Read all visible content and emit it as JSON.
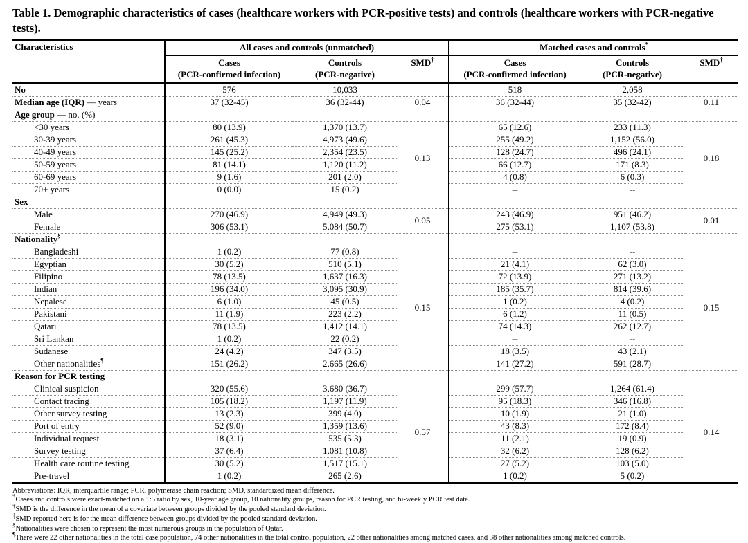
{
  "title": "Table 1. Demographic characteristics of cases (healthcare workers with PCR-positive tests) and controls (healthcare workers with PCR-negative tests).",
  "table": {
    "header": {
      "characteristics": "Characteristics",
      "group1": "All cases and controls (unmatched)",
      "group2": "Matched cases and controls",
      "group2_sup": "*",
      "cases_line1": "Cases",
      "cases_line2": "(PCR-confirmed infection)",
      "controls_line1": "Controls",
      "controls_line2": "(PCR-negative)",
      "smd": "SMD",
      "smd_sup": "†"
    },
    "rows": [
      {
        "label": "No",
        "bold": true,
        "cells": [
          "576",
          "10,033",
          "",
          "518",
          "2,058",
          ""
        ]
      },
      {
        "label": "Median age (IQR)",
        "rest": " — years",
        "bold": true,
        "cells": [
          "37 (32-45)",
          "36 (32-44)",
          "0.04",
          "36 (32-44)",
          "35 (32-42)",
          "0.11"
        ]
      },
      {
        "label": "Age group",
        "rest": " — no. (%)",
        "bold": true,
        "cells": [
          "",
          "",
          "",
          "",
          "",
          ""
        ]
      },
      {
        "label": "<30 years",
        "indent": true,
        "cells": [
          "80 (13.9)",
          "1,370 (13.7)",
          {
            "t": "0.13",
            "rs": 6
          },
          "65 (12.6)",
          "233 (11.3)",
          {
            "t": "0.18",
            "rs": 6
          }
        ]
      },
      {
        "label": "30-39 years",
        "indent": true,
        "cells": [
          "261 (45.3)",
          "4,973 (49.6)",
          "255 (49.2)",
          "1,152 (56.0)"
        ]
      },
      {
        "label": "40-49 years",
        "indent": true,
        "cells": [
          "145 (25.2)",
          "2,354 (23.5)",
          "128 (24.7)",
          "496 (24.1)"
        ]
      },
      {
        "label": "50-59 years",
        "indent": true,
        "cells": [
          "81 (14.1)",
          "1,120 (11.2)",
          "66 (12.7)",
          "171 (8.3)"
        ]
      },
      {
        "label": "60-69 years",
        "indent": true,
        "cells": [
          "9 (1.6)",
          "201 (2.0)",
          "4 (0.8)",
          "6 (0.3)"
        ]
      },
      {
        "label": "70+ years",
        "indent": true,
        "cells": [
          "0 (0.0)",
          "15 (0.2)",
          "--",
          "--"
        ]
      },
      {
        "label": "Sex",
        "bold": true,
        "cells": [
          "",
          "",
          "",
          "",
          "",
          ""
        ]
      },
      {
        "label": "Male",
        "indent": true,
        "cells": [
          "270 (46.9)",
          "4,949 (49.3)",
          {
            "t": "0.05",
            "rs": 2
          },
          "243 (46.9)",
          "951 (46.2)",
          {
            "t": "0.01",
            "rs": 2
          }
        ]
      },
      {
        "label": "Female",
        "indent": true,
        "cells": [
          "306 (53.1)",
          "5,084 (50.7)",
          "275 (53.1)",
          "1,107 (53.8)"
        ]
      },
      {
        "label": "Nationality",
        "sup": "§",
        "bold": true,
        "cells": [
          "",
          "",
          "",
          "",
          "",
          ""
        ]
      },
      {
        "label": "Bangladeshi",
        "indent": true,
        "cells": [
          "1 (0.2)",
          "77 (0.8)",
          {
            "t": "0.15",
            "rs": 10
          },
          "--",
          "--",
          {
            "t": "0.15",
            "rs": 10
          }
        ]
      },
      {
        "label": "Egyptian",
        "indent": true,
        "cells": [
          "30 (5.2)",
          "510 (5.1)",
          "21 (4.1)",
          "62 (3.0)"
        ]
      },
      {
        "label": "Filipino",
        "indent": true,
        "cells": [
          "78 (13.5)",
          "1,637 (16.3)",
          "72 (13.9)",
          "271 (13.2)"
        ]
      },
      {
        "label": "Indian",
        "indent": true,
        "cells": [
          "196 (34.0)",
          "3,095 (30.9)",
          "185 (35.7)",
          "814 (39.6)"
        ]
      },
      {
        "label": "Nepalese",
        "indent": true,
        "cells": [
          "6 (1.0)",
          "45 (0.5)",
          "1 (0.2)",
          "4 (0.2)"
        ]
      },
      {
        "label": "Pakistani",
        "indent": true,
        "cells": [
          "11 (1.9)",
          "223 (2.2)",
          "6 (1.2)",
          "11 (0.5)"
        ]
      },
      {
        "label": "Qatari",
        "indent": true,
        "cells": [
          "78 (13.5)",
          "1,412 (14.1)",
          "74 (14.3)",
          "262 (12.7)"
        ]
      },
      {
        "label": "Sri Lankan",
        "indent": true,
        "cells": [
          "1 (0.2)",
          "22 (0.2)",
          "--",
          "--"
        ]
      },
      {
        "label": "Sudanese",
        "indent": true,
        "cells": [
          "24 (4.2)",
          "347 (3.5)",
          "18 (3.5)",
          "43 (2.1)"
        ]
      },
      {
        "label": "Other nationalities",
        "sup": "¶",
        "indent": true,
        "cells": [
          "151 (26.2)",
          "2,665 (26.6)",
          "141 (27.2)",
          "591 (28.7)"
        ]
      },
      {
        "label": "Reason for PCR testing",
        "bold": true,
        "cells": [
          "",
          "",
          "",
          "",
          "",
          ""
        ]
      },
      {
        "label": "Clinical suspicion",
        "indent": true,
        "cells": [
          "320 (55.6)",
          "3,680 (36.7)",
          {
            "t": "0.57",
            "rs": 8
          },
          "299 (57.7)",
          "1,264 (61.4)",
          {
            "t": "0.14",
            "rs": 8
          }
        ]
      },
      {
        "label": "Contact tracing",
        "indent": true,
        "cells": [
          "105 (18.2)",
          "1,197 (11.9)",
          "95 (18.3)",
          "346 (16.8)"
        ]
      },
      {
        "label": "Other survey testing",
        "indent": true,
        "cells": [
          "13 (2.3)",
          "399 (4.0)",
          "10 (1.9)",
          "21 (1.0)"
        ]
      },
      {
        "label": "Port of entry",
        "indent": true,
        "cells": [
          "52 (9.0)",
          "1,359 (13.6)",
          "43 (8.3)",
          "172 (8.4)"
        ]
      },
      {
        "label": "Individual request",
        "indent": true,
        "cells": [
          "18 (3.1)",
          "535 (5.3)",
          "11 (2.1)",
          "19 (0.9)"
        ]
      },
      {
        "label": "Survey testing",
        "indent": true,
        "cells": [
          "37 (6.4)",
          "1,081 (10.8)",
          "32 (6.2)",
          "128 (6.2)"
        ]
      },
      {
        "label": "Health care routine testing",
        "indent": true,
        "cells": [
          "30 (5.2)",
          "1,517 (15.1)",
          "27 (5.2)",
          "103 (5.0)"
        ]
      },
      {
        "label": "Pre-travel",
        "indent": true,
        "cells": [
          "1 (0.2)",
          "265 (2.6)",
          "1 (0.2)",
          "5 (0.2)"
        ]
      }
    ]
  },
  "footnotes": [
    {
      "marker": "",
      "text": "Abbreviations: IQR, interquartile range; PCR, polymerase chain reaction; SMD, standardized mean difference."
    },
    {
      "marker": "*",
      "text": "Cases and controls were exact-matched on a 1:5 ratio by sex, 10-year age group, 10 nationality groups, reason for PCR testing, and bi-weekly PCR test date."
    },
    {
      "marker": "†",
      "text": "SMD is the difference in the mean of a covariate between groups divided by the pooled standard deviation."
    },
    {
      "marker": "‡",
      "text": "SMD reported here is for the mean difference between groups divided by the pooled standard deviation."
    },
    {
      "marker": "§",
      "text": "Nationalities were chosen to represent the most numerous groups in the population of Qatar."
    },
    {
      "marker": "¶",
      "text": "There were 22 other nationalities in the total case population, 74 other nationalities in the total control population, 22 other nationalities among matched cases, and 38 other nationalities among matched controls."
    }
  ]
}
